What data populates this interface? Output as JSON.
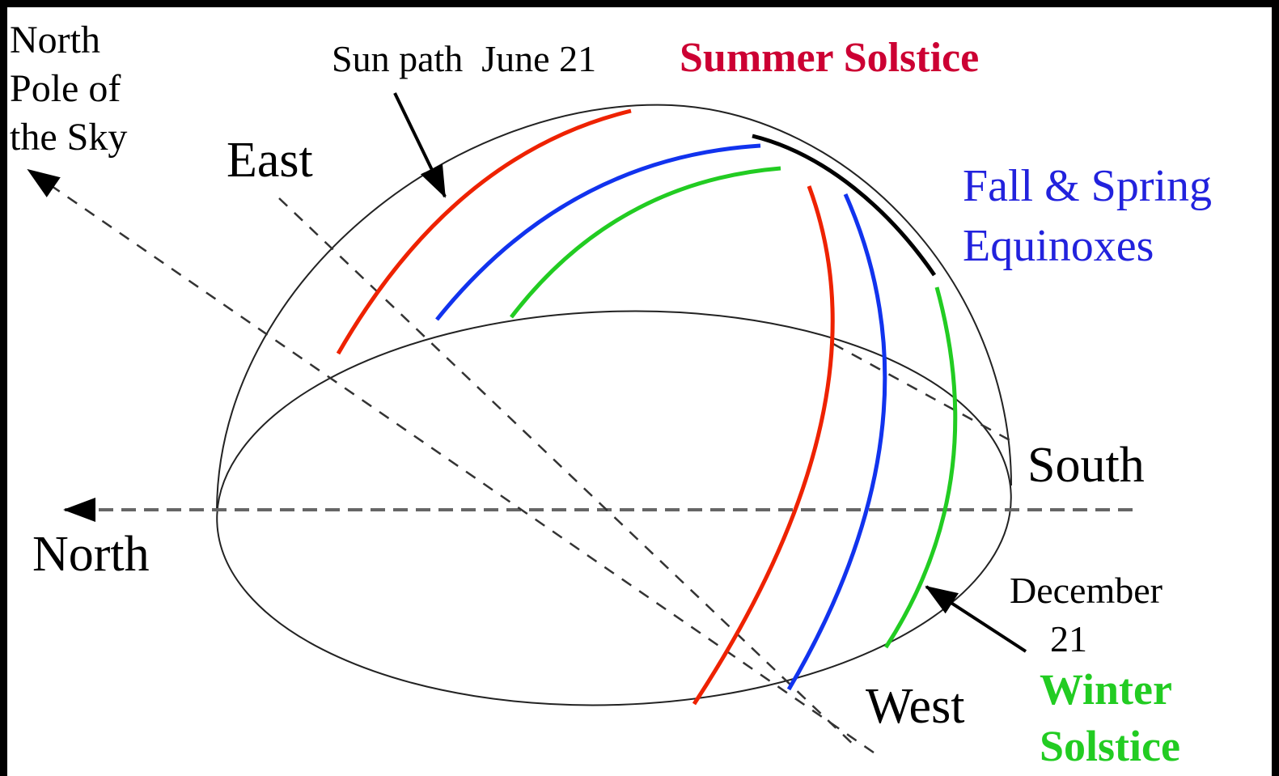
{
  "labels": {
    "pole": [
      "North",
      "Pole of",
      "the Sky"
    ],
    "sun_path": "Sun path  June 21",
    "summer": "Summer Solstice",
    "east": "East",
    "equinox": [
      "Fall & Spring",
      "Equinoxes"
    ],
    "south": "South",
    "north": "North",
    "december": [
      "December",
      "21"
    ],
    "west": "West",
    "winter": [
      "Winter",
      "Solstice"
    ]
  }
}
